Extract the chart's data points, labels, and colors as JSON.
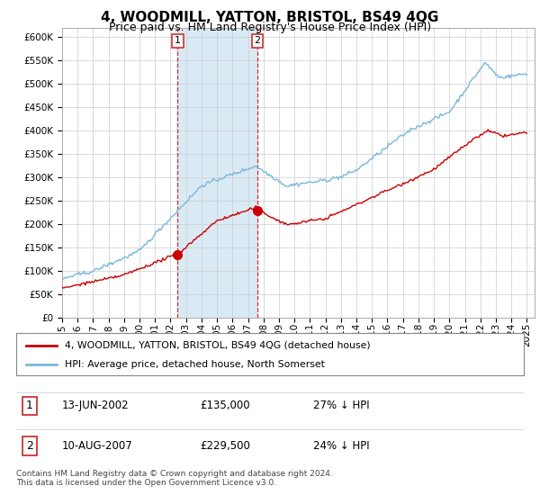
{
  "title": "4, WOODMILL, YATTON, BRISTOL, BS49 4QG",
  "subtitle": "Price paid vs. HM Land Registry's House Price Index (HPI)",
  "ylim": [
    0,
    620000
  ],
  "yticks": [
    0,
    50000,
    100000,
    150000,
    200000,
    250000,
    300000,
    350000,
    400000,
    450000,
    500000,
    550000,
    600000
  ],
  "xlim_start": 1995.0,
  "xlim_end": 2025.5,
  "hpi_color": "#7ab8d9",
  "hpi_fill_color": "#daeaf5",
  "price_color": "#cc0000",
  "sale1_date": 2002.45,
  "sale1_price": 135000,
  "sale2_date": 2007.61,
  "sale2_price": 229500,
  "legend_price_label": "4, WOODMILL, YATTON, BRISTOL, BS49 4QG (detached house)",
  "legend_hpi_label": "HPI: Average price, detached house, North Somerset",
  "annotation1_box_label": "1",
  "annotation1_date": "13-JUN-2002",
  "annotation1_price": "£135,000",
  "annotation1_hpi": "27% ↓ HPI",
  "annotation2_box_label": "2",
  "annotation2_date": "10-AUG-2007",
  "annotation2_price": "£229,500",
  "annotation2_hpi": "24% ↓ HPI",
  "footer": "Contains HM Land Registry data © Crown copyright and database right 2024.\nThis data is licensed under the Open Government Licence v3.0.",
  "background_color": "#ffffff",
  "grid_color": "#cccccc",
  "title_fontsize": 11,
  "subtitle_fontsize": 9,
  "tick_fontsize": 7.5
}
